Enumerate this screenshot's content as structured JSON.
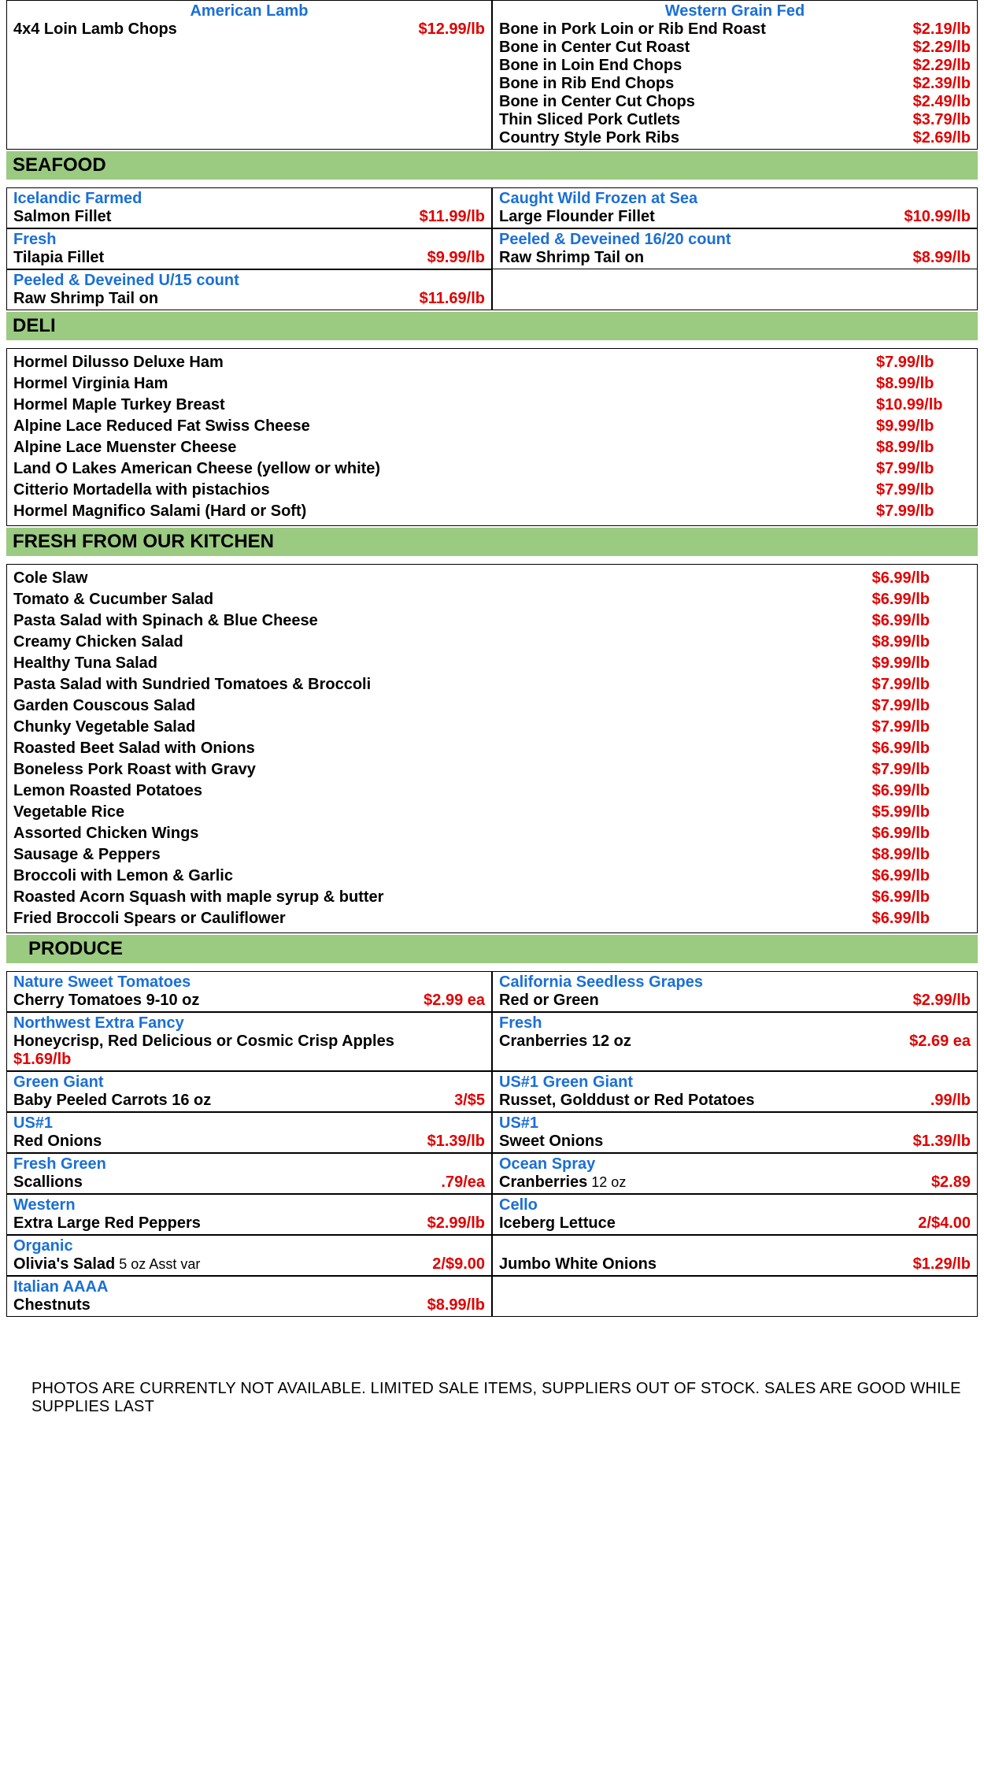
{
  "colors": {
    "brand": "#1a6fd6",
    "price": "#e00000",
    "section_bg": "#9bca81",
    "border": "#000000",
    "text": "#000000",
    "bg": "#ffffff"
  },
  "top": {
    "left": {
      "brand": "American Lamb",
      "items": [
        {
          "name": "4x4 Loin Lamb Chops",
          "price": "$12.99/lb"
        }
      ]
    },
    "right": {
      "brand": "Western Grain Fed",
      "items": [
        {
          "name": "Bone in Pork Loin or Rib End Roast",
          "price": "$2.19/lb"
        },
        {
          "name": "Bone in Center Cut Roast",
          "price": "$2.29/lb"
        },
        {
          "name": "Bone in Loin End Chops",
          "price": "$2.29/lb"
        },
        {
          "name": "Bone in Rib End Chops",
          "price": "$2.39/lb"
        },
        {
          "name": "Bone in Center Cut Chops",
          "price": "$2.49/lb"
        },
        {
          "name": "Thin Sliced Pork Cutlets",
          "price": "$3.79/lb"
        },
        {
          "name": "Country Style Pork Ribs",
          "price": "$2.69/lb"
        }
      ]
    }
  },
  "seafood_header": "SEAFOOD",
  "seafood": {
    "row1": {
      "left": {
        "brand": "Icelandic Farmed",
        "name": "Salmon Fillet",
        "price": "$11.99/lb"
      },
      "right": {
        "brand": "Caught Wild Frozen at Sea",
        "name": "Large Flounder Fillet",
        "price": "$10.99/lb"
      }
    },
    "row2": {
      "left": {
        "brand": "Fresh",
        "name": "Tilapia Fillet",
        "price": "$9.99/lb"
      },
      "right": {
        "brand": "Peeled & Deveined 16/20 count",
        "name": "Raw Shrimp Tail on",
        "price": "$8.99/lb"
      }
    },
    "row3": {
      "left": {
        "brand": "Peeled & Deveined U/15 count",
        "name": "Raw Shrimp Tail on",
        "price": "$11.69/lb"
      },
      "right": null
    }
  },
  "deli_header": "DELI",
  "deli": [
    {
      "name": "Hormel Dilusso Deluxe Ham",
      "price": "$7.99/lb"
    },
    {
      "name": "Hormel Virginia Ham",
      "price": "$8.99/lb"
    },
    {
      "name": "Hormel Maple Turkey Breast",
      "price": "$10.99/lb"
    },
    {
      "name": "Alpine Lace Reduced Fat Swiss Cheese",
      "price": "$9.99/lb"
    },
    {
      "name": "Alpine Lace Muenster Cheese",
      "price": "$8.99/lb"
    },
    {
      "name": "Land O Lakes American Cheese (yellow or white)",
      "price": "$7.99/lb"
    },
    {
      "name": "Citterio Mortadella with pistachios",
      "price": "$7.99/lb"
    },
    {
      "name": "Hormel Magnifico Salami (Hard or Soft)",
      "price": "$7.99/lb"
    }
  ],
  "kitchen_header": "FRESH FROM OUR KITCHEN",
  "kitchen": [
    {
      "name": "Cole Slaw",
      "price": "$6.99/lb"
    },
    {
      "name": "Tomato & Cucumber Salad",
      "price": "$6.99/lb"
    },
    {
      "name": "Pasta Salad with Spinach & Blue Cheese",
      "price": "$6.99/lb"
    },
    {
      "name": "Creamy Chicken Salad",
      "price": "$8.99/lb"
    },
    {
      "name": "Healthy Tuna Salad",
      "price": "$9.99/lb"
    },
    {
      "name": "Pasta Salad with Sundried Tomatoes & Broccoli",
      "price": "$7.99/lb"
    },
    {
      "name": "Garden Couscous Salad",
      "price": "$7.99/lb"
    },
    {
      "name": "Chunky Vegetable Salad",
      "price": "$7.99/lb"
    },
    {
      "name": "Roasted Beet Salad with Onions",
      "price": "$6.99/lb"
    },
    {
      "name": "Boneless Pork Roast with Gravy",
      "price": "$7.99/lb"
    },
    {
      "name": "Lemon Roasted Potatoes",
      "price": "$6.99/lb"
    },
    {
      "name": "Vegetable Rice",
      "price": "$5.99/lb"
    },
    {
      "name": "Assorted Chicken Wings",
      "price": "$6.99/lb"
    },
    {
      "name": "Sausage & Peppers",
      "price": "$8.99/lb"
    },
    {
      "name": "Broccoli with Lemon & Garlic",
      "price": "$6.99/lb"
    },
    {
      "name": "Roasted Acorn Squash with maple syrup & butter",
      "price": "$6.99/lb"
    },
    {
      "name": "Fried Broccoli Spears or Cauliflower",
      "price": "$6.99/lb"
    }
  ],
  "produce_header": "PRODUCE",
  "produce": [
    {
      "left": {
        "brand": "Nature Sweet Tomatoes",
        "name": "Cherry Tomatoes 9-10 oz",
        "price": "$2.99 ea"
      },
      "right": {
        "brand": "California Seedless Grapes",
        "name": "Red or Green",
        "price": "$2.99/lb"
      }
    },
    {
      "left": {
        "brand": "Northwest Extra Fancy",
        "name": "Honeycrisp, Red Delicious or Cosmic Crisp Apples",
        "price_below": "$1.69/lb"
      },
      "right": {
        "brand": "Fresh",
        "name": "Cranberries 12 oz",
        "price": "$2.69 ea"
      }
    },
    {
      "left": {
        "brand": "Green Giant",
        "name": "Baby Peeled Carrots 16 oz",
        "price": "3/$5"
      },
      "right": {
        "brand": "US#1 Green Giant",
        "name": "Russet, Golddust or Red Potatoes",
        "price": ".99/lb"
      }
    },
    {
      "left": {
        "brand": "US#1",
        "name": "Red Onions",
        "price": "$1.39/lb"
      },
      "right": {
        "brand": "US#1",
        "name": "Sweet Onions",
        "price": "$1.39/lb"
      }
    },
    {
      "left": {
        "brand": "Fresh Green",
        "name": "Scallions",
        "price": ".79/ea"
      },
      "right": {
        "brand": "Ocean Spray",
        "name": "Cranberries",
        "sub": "12 oz",
        "price": "$2.89"
      }
    },
    {
      "left": {
        "brand": "Western",
        "name": "Extra Large Red Peppers",
        "price": "$2.99/lb"
      },
      "right": {
        "brand": "Cello",
        "name": "Iceberg Lettuce",
        "price": "2/$4.00"
      }
    },
    {
      "left": {
        "brand": "Organic",
        "name": "Olivia's Salad",
        "sub": "5 oz Asst var",
        "price": "2/$9.00"
      },
      "right": {
        "brand": "",
        "name": "Jumbo White Onions",
        "price": "$1.29/lb"
      }
    },
    {
      "left": {
        "brand": "Italian AAAA",
        "name": "Chestnuts",
        "price": "$8.99/lb"
      },
      "right": {
        "brand": "",
        "name": "",
        "price": ""
      }
    }
  ],
  "footer": "PHOTOS ARE CURRENTLY NOT AVAILABLE. LIMITED SALE ITEMS, SUPPLIERS OUT OF STOCK. SALES ARE GOOD WHILE SUPPLIES LAST"
}
